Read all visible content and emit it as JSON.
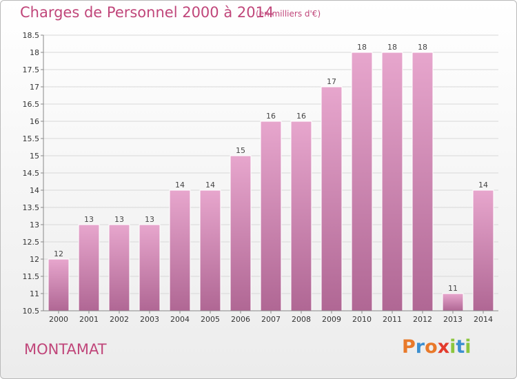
{
  "header": {
    "title": "Charges de Personnel 2000 à 2014",
    "subtitle": "(en milliers d'€)"
  },
  "footer": {
    "place": "MONTAMAT",
    "logo": "Proxiti"
  },
  "colors": {
    "title": "#c0467a",
    "bar_top": "#e7a6cd",
    "bar_bottom": "#b06794",
    "logo_letters": [
      "#e8792a",
      "#3c8fd0",
      "#e8792a",
      "#e33b2d",
      "#8cc63e",
      "#3c8fd0",
      "#8cc63e"
    ]
  },
  "chart_data": {
    "type": "bar",
    "categories": [
      "2000",
      "2001",
      "2002",
      "2003",
      "2004",
      "2005",
      "2006",
      "2007",
      "2008",
      "2009",
      "2010",
      "2011",
      "2012",
      "2013",
      "2014"
    ],
    "values": [
      12,
      13,
      13,
      13,
      14,
      14,
      15,
      16,
      16,
      17,
      18,
      18,
      18,
      11,
      14
    ],
    "data_labels": [
      "12",
      "13",
      "13",
      "13",
      "14",
      "14",
      "15",
      "16",
      "16",
      "17",
      "18",
      "18",
      "18",
      "11",
      "14"
    ],
    "title": "Charges de Personnel 2000 à 2014",
    "subtitle": "(en milliers d'€)",
    "xlabel": "",
    "ylabel": "",
    "ylim": [
      10.5,
      18.5
    ],
    "yticks": [
      "10.5",
      "11",
      "11.5",
      "12",
      "12.5",
      "13",
      "13.5",
      "14",
      "14.5",
      "15",
      "15.5",
      "16",
      "16.5",
      "17",
      "17.5",
      "18",
      "18.5"
    ],
    "grid": true
  }
}
